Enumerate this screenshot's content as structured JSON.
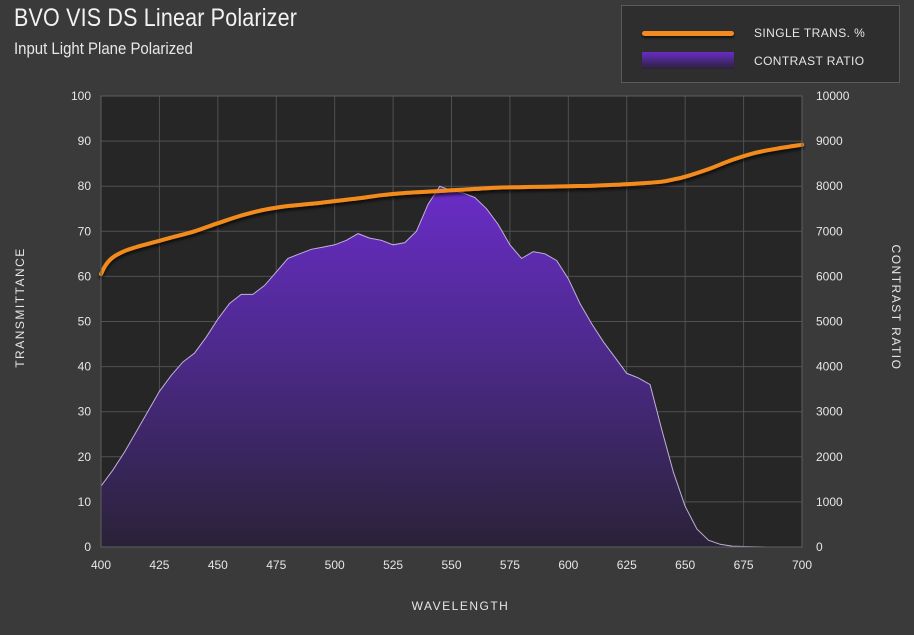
{
  "title": "BVO VIS DS Linear Polarizer",
  "subtitle": "Input Light Plane Polarized",
  "colors": {
    "background": "#3a3a3a",
    "plot_background": "#262626",
    "grid": "#505050",
    "transmission_line": "#f28a1e",
    "contrast_fill_top": "#6a2cc8",
    "contrast_fill_bottom": "#2a2238",
    "contrast_edge": "#d8c8f0"
  },
  "legend": {
    "items": [
      {
        "label": "SINGLE TRANS. %",
        "kind": "line"
      },
      {
        "label": "CONTRAST RATIO",
        "kind": "fill"
      }
    ]
  },
  "chart_data": {
    "type": "line",
    "xlabel": "WAVELENGTH",
    "ylabel": "TRANSMITTANCE",
    "y2label": "CONTRAST RATIO",
    "xlim": [
      400,
      700
    ],
    "ylim": [
      0,
      100
    ],
    "y2lim": [
      0,
      10000
    ],
    "xticks": [
      400,
      425,
      450,
      475,
      500,
      525,
      550,
      575,
      600,
      625,
      650,
      675,
      700
    ],
    "yticks": [
      0,
      10,
      20,
      30,
      40,
      50,
      60,
      70,
      80,
      90,
      100
    ],
    "y2ticks": [
      0,
      1000,
      2000,
      3000,
      4000,
      5000,
      6000,
      7000,
      8000,
      9000,
      10000
    ],
    "grid": true,
    "legend_position": "top-right",
    "series": [
      {
        "name": "SINGLE TRANS. %",
        "axis": "left",
        "style": "line",
        "x": [
          400,
          402,
          405,
          410,
          415,
          420,
          425,
          430,
          440,
          450,
          460,
          470,
          480,
          490,
          500,
          510,
          520,
          530,
          540,
          550,
          560,
          570,
          580,
          590,
          600,
          610,
          620,
          630,
          640,
          645,
          650,
          660,
          670,
          680,
          690,
          700
        ],
        "values": [
          60.5,
          62.5,
          64.2,
          65.6,
          66.5,
          67.2,
          67.9,
          68.6,
          70.0,
          71.8,
          73.5,
          74.8,
          75.6,
          76.1,
          76.7,
          77.3,
          78.0,
          78.5,
          78.8,
          79.1,
          79.4,
          79.7,
          79.8,
          79.9,
          80.0,
          80.1,
          80.3,
          80.6,
          81.0,
          81.5,
          82.1,
          83.8,
          85.8,
          87.4,
          88.4,
          89.2
        ]
      },
      {
        "name": "CONTRAST RATIO",
        "axis": "right",
        "style": "area",
        "x": [
          400,
          405,
          410,
          415,
          420,
          425,
          430,
          435,
          440,
          445,
          450,
          455,
          460,
          465,
          470,
          475,
          480,
          485,
          490,
          495,
          500,
          505,
          510,
          515,
          520,
          525,
          530,
          535,
          540,
          545,
          550,
          555,
          560,
          565,
          570,
          575,
          580,
          585,
          590,
          595,
          600,
          605,
          610,
          615,
          620,
          625,
          630,
          635,
          640,
          645,
          650,
          655,
          660,
          665,
          670,
          675,
          680,
          685,
          690,
          695,
          700
        ],
        "values": [
          1350,
          1700,
          2100,
          2550,
          3000,
          3450,
          3800,
          4100,
          4300,
          4650,
          5050,
          5400,
          5600,
          5600,
          5800,
          6100,
          6400,
          6500,
          6600,
          6650,
          6700,
          6800,
          6950,
          6850,
          6800,
          6700,
          6750,
          7000,
          7600,
          8000,
          7900,
          7850,
          7750,
          7500,
          7150,
          6700,
          6400,
          6550,
          6500,
          6350,
          5950,
          5400,
          4950,
          4550,
          4200,
          3850,
          3750,
          3600,
          2600,
          1650,
          900,
          400,
          150,
          60,
          20,
          10,
          5,
          0,
          0,
          0,
          0
        ]
      }
    ]
  }
}
